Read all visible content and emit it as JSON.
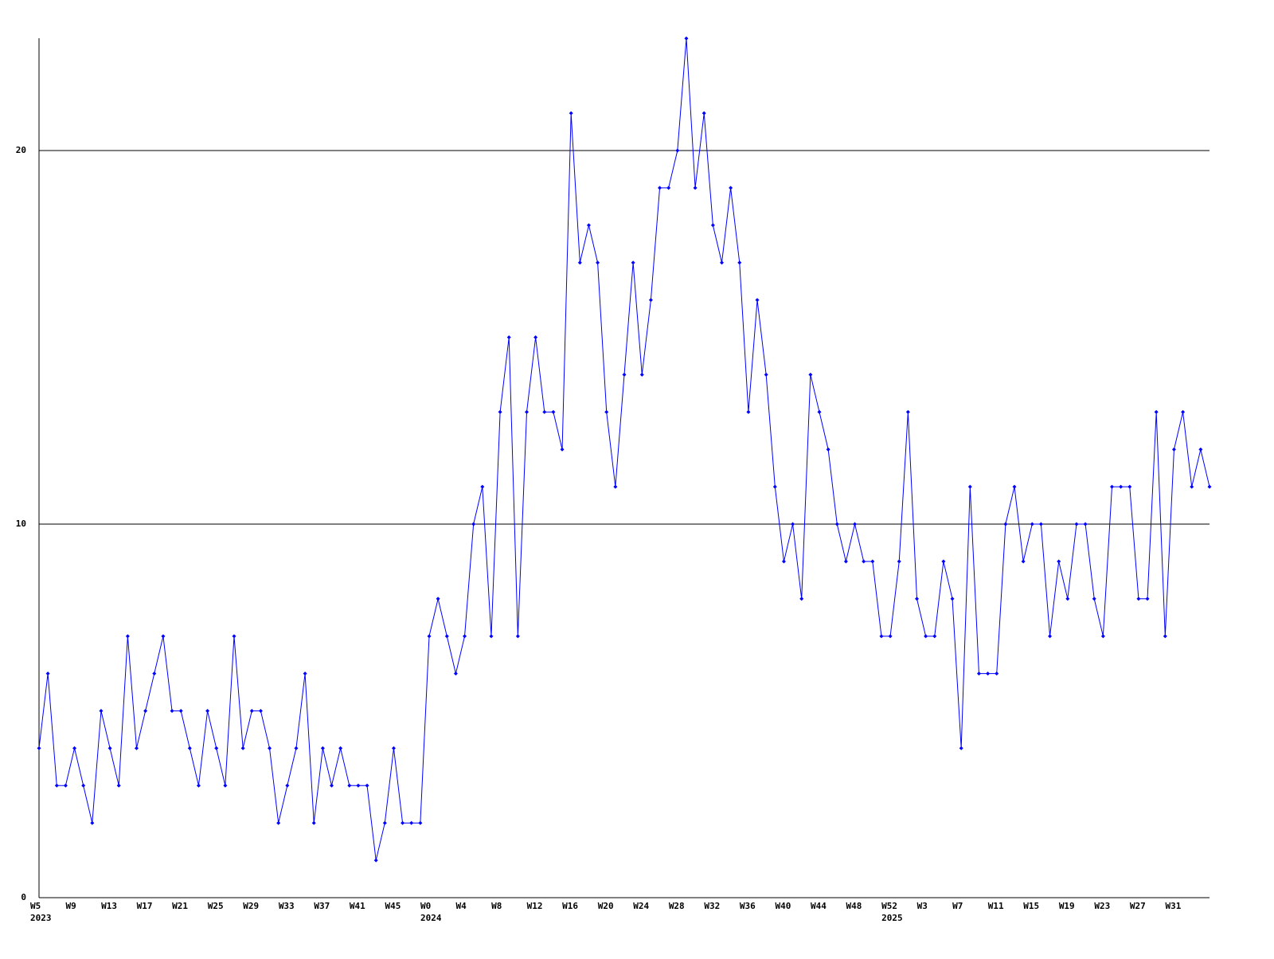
{
  "chart_data": {
    "type": "line",
    "categories": [
      "W5",
      null,
      null,
      null,
      "W9",
      null,
      null,
      null,
      "W13",
      null,
      null,
      null,
      "W17",
      null,
      null,
      null,
      "W21",
      null,
      null,
      null,
      "W25",
      null,
      null,
      null,
      "W29",
      null,
      null,
      null,
      "W33",
      null,
      null,
      null,
      "W37",
      null,
      null,
      null,
      "W41",
      null,
      null,
      null,
      "W45",
      null,
      null,
      null,
      "W0",
      null,
      null,
      null,
      "W4",
      null,
      null,
      null,
      "W8",
      null,
      null,
      null,
      "W12",
      null,
      null,
      null,
      "W16",
      null,
      null,
      null,
      "W20",
      null,
      null,
      null,
      "W24",
      null,
      null,
      null,
      "W28",
      null,
      null,
      null,
      "W32",
      null,
      null,
      null,
      "W36",
      null,
      null,
      null,
      "W40",
      null,
      null,
      null,
      "W44",
      null,
      null,
      null,
      "W48",
      null,
      null,
      null,
      "W52",
      null,
      null,
      null,
      "W3",
      null,
      null,
      null,
      "W7",
      null,
      null,
      null,
      "W11",
      null,
      null,
      null,
      "W15",
      null,
      null,
      null,
      "W19",
      null,
      null,
      null,
      "W23",
      null,
      null,
      null,
      "W27",
      null,
      null,
      null,
      "W31",
      null,
      null,
      null,
      null
    ],
    "years": [
      "2023",
      null,
      null,
      null,
      null,
      null,
      null,
      null,
      null,
      null,
      null,
      null,
      null,
      null,
      null,
      null,
      null,
      null,
      null,
      null,
      null,
      null,
      null,
      null,
      null,
      null,
      null,
      null,
      null,
      null,
      null,
      null,
      null,
      null,
      null,
      null,
      null,
      null,
      null,
      null,
      null,
      null,
      null,
      null,
      "2024",
      null,
      null,
      null,
      null,
      null,
      null,
      null,
      null,
      null,
      null,
      null,
      null,
      null,
      null,
      null,
      null,
      null,
      null,
      null,
      null,
      null,
      null,
      null,
      null,
      null,
      null,
      null,
      null,
      null,
      null,
      null,
      null,
      null,
      null,
      null,
      null,
      null,
      null,
      null,
      null,
      null,
      null,
      null,
      null,
      null,
      null,
      null,
      null,
      null,
      null,
      null,
      "2025",
      null,
      null,
      null,
      null,
      null,
      null,
      null,
      null,
      null,
      null,
      null,
      null,
      null,
      null,
      null,
      null,
      null,
      null,
      null,
      null,
      null,
      null,
      null,
      null,
      null,
      null,
      null,
      null,
      null,
      null,
      null,
      null,
      null,
      null,
      null,
      null
    ],
    "values": [
      4,
      6,
      3,
      3,
      4,
      3,
      2,
      5,
      4,
      3,
      7,
      4,
      5,
      6,
      7,
      5,
      5,
      4,
      3,
      5,
      4,
      3,
      7,
      4,
      5,
      5,
      4,
      2,
      3,
      4,
      6,
      2,
      4,
      3,
      4,
      3,
      3,
      3,
      1,
      2,
      4,
      2,
      2,
      2,
      7,
      8,
      7,
      6,
      7,
      10,
      11,
      7,
      13,
      15,
      7,
      13,
      15,
      13,
      13,
      12,
      21,
      17,
      18,
      17,
      13,
      11,
      14,
      17,
      14,
      16,
      19,
      19,
      20,
      23,
      19,
      21,
      18,
      17,
      19,
      17,
      13,
      16,
      14,
      11,
      9,
      10,
      8,
      14,
      13,
      12,
      10,
      9,
      10,
      9,
      9,
      7,
      7,
      9,
      13,
      8,
      7,
      7,
      9,
      8,
      4,
      11,
      6,
      6,
      6,
      10,
      11,
      9,
      10,
      10,
      7,
      9,
      8,
      10,
      10,
      8,
      7,
      11,
      11,
      11,
      8,
      8,
      13,
      7,
      12,
      13,
      11,
      12,
      11
    ],
    "color": "#0000ff",
    "ylim": [
      0,
      23
    ],
    "yticks": [
      0,
      10,
      20
    ],
    "grid": true
  }
}
